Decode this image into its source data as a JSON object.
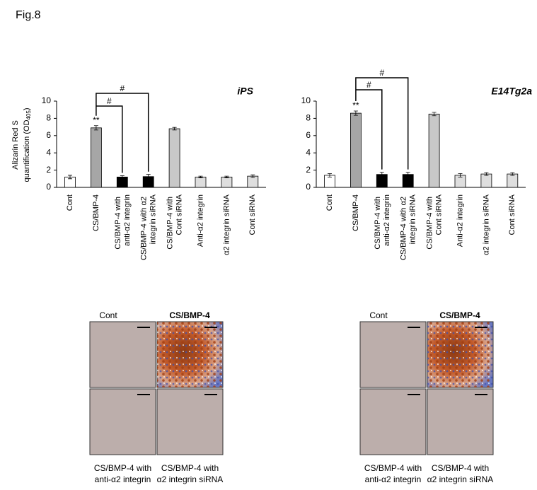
{
  "figure_label": "Fig.8",
  "chart_data": [
    {
      "type": "bar",
      "title": "iPS",
      "y_label": {
        "line1": "Alizarin Red S",
        "line2": "quantification (OD",
        "sub": "405",
        "end": ")"
      },
      "categories": [
        "Cont",
        "CS/BMP-4",
        "CS/BMP-4 with anti-α2 integrin",
        "CS/BMP-4 with α2 integrin siRNA",
        "CS/BMP-4 with Cont siRNA",
        "Anti-α2 integrin",
        "α2 integrin siRNA",
        "Cont siRNA"
      ],
      "values": [
        1.2,
        6.9,
        1.2,
        1.25,
        6.8,
        1.2,
        1.2,
        1.3
      ],
      "errors": [
        0.2,
        0.25,
        0.15,
        0.25,
        0.15,
        0.1,
        0.1,
        0.15
      ],
      "colors": [
        "#ffffff",
        "#a6a6a6",
        "#000000",
        "#000000",
        "#c8c8c8",
        "#dedede",
        "#dedede",
        "#dedede"
      ],
      "annotations": [
        "**",
        "#",
        "#"
      ],
      "ylim": [
        0,
        10
      ],
      "yticks": [
        0,
        2,
        4,
        6,
        8,
        10
      ]
    },
    {
      "type": "bar",
      "title": "E14Tg2a",
      "categories": [
        "Cont",
        "CS/BMP-4",
        "CS/BMP-4 with anti-α2 integrin",
        "CS/BMP-4 with α2 integrin siRNA",
        "CS/BMP-4 with Cont siRNA",
        "Anti-α2 integrin",
        "α2 integrin siRNA",
        "Cont siRNA"
      ],
      "values": [
        1.4,
        8.6,
        1.5,
        1.5,
        8.5,
        1.4,
        1.55,
        1.55
      ],
      "errors": [
        0.2,
        0.25,
        0.25,
        0.25,
        0.2,
        0.2,
        0.15,
        0.15
      ],
      "colors": [
        "#ffffff",
        "#a6a6a6",
        "#000000",
        "#000000",
        "#c8c8c8",
        "#dedede",
        "#dedede",
        "#dedede"
      ],
      "annotations": [
        "**",
        "#",
        "#"
      ],
      "ylim": [
        0,
        10
      ],
      "yticks": [
        0,
        2,
        4,
        6,
        8,
        10
      ]
    }
  ],
  "panels": [
    {
      "top_labels": [
        "Cont",
        "CS/BMP-4"
      ],
      "bottom_labels": [
        [
          "CS/BMP-4 with",
          "anti-α2 integrin"
        ],
        [
          "CS/BMP-4 with",
          "α2 integrin siRNA"
        ]
      ]
    },
    {
      "top_labels": [
        "Cont",
        "CS/BMP-4"
      ],
      "bottom_labels": [
        [
          "CS/BMP-4 with",
          "anti-α2 integrin"
        ],
        [
          "CS/BMP-4 with",
          "α2 integrin siRNA"
        ]
      ]
    }
  ]
}
